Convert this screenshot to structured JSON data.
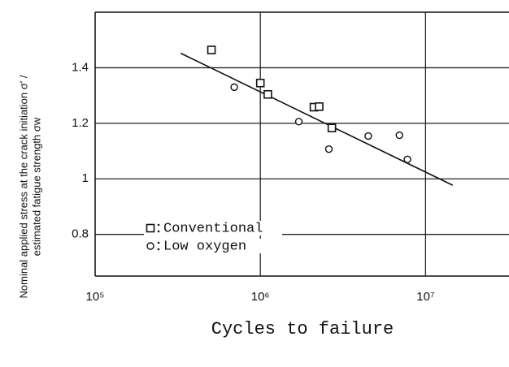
{
  "chart_data": {
    "type": "scatter",
    "x_label": "Cycles to failure",
    "y_label": [
      "Nominal applied stress at the crack initiation σ' /",
      "estimated fatigue strength σw"
    ],
    "xlog": true,
    "xlim": [
      100000,
      32000000
    ],
    "ylim": [
      0.65,
      1.6
    ],
    "xticks": [
      {
        "value": 100000,
        "label": "10⁵"
      },
      {
        "value": 1000000,
        "label": "10⁶"
      },
      {
        "value": 10000000,
        "label": "10⁷"
      }
    ],
    "yticks": [
      0.8,
      1.0,
      1.2,
      1.4
    ],
    "grid": true,
    "legend": "lower left",
    "series": [
      {
        "name": "Conventional",
        "marker": "square",
        "color": "#111111",
        "x": [
          506000,
          1000000,
          1110000,
          2110000,
          2270000,
          2710000
        ],
        "values": [
          1.464,
          1.345,
          1.304,
          1.258,
          1.26,
          1.183
        ]
      },
      {
        "name": "Low oxygen",
        "marker": "circle",
        "color": "#111111",
        "x": [
          695000,
          1710000,
          2600000,
          4500000,
          6950000,
          7770000
        ],
        "values": [
          1.33,
          1.206,
          1.107,
          1.154,
          1.157,
          1.07
        ]
      }
    ],
    "trend_line": {
      "x": [
        330000,
        14600000
      ],
      "values": [
        1.452,
        0.977
      ],
      "color": "#111111"
    }
  }
}
